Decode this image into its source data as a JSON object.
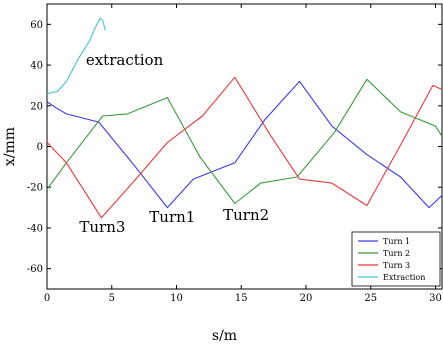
{
  "chart_data": {
    "type": "line",
    "title": "",
    "xlabel": "s/m",
    "ylabel": "x/mm",
    "xlim": [
      0,
      30.5
    ],
    "ylim": [
      -70,
      70
    ],
    "xticks": [
      0,
      5,
      10,
      15,
      20,
      25,
      30
    ],
    "yticks": [
      -60,
      -40,
      -20,
      0,
      20,
      40,
      60
    ],
    "grid": false,
    "legend_position": "bottom-right",
    "series": [
      {
        "name": "Turn 1",
        "color": "#3a3ae6",
        "points": [
          [
            0,
            22
          ],
          [
            0.7,
            19
          ],
          [
            1.5,
            16
          ],
          [
            4,
            12
          ],
          [
            6.7,
            -9
          ],
          [
            9.3,
            -30
          ],
          [
            11.3,
            -16
          ],
          [
            14.5,
            -8
          ],
          [
            16.8,
            13
          ],
          [
            19.5,
            32
          ],
          [
            22,
            10
          ],
          [
            24.7,
            -4
          ],
          [
            27.3,
            -15
          ],
          [
            29.5,
            -30
          ],
          [
            30.5,
            -24
          ]
        ]
      },
      {
        "name": "Turn 2",
        "color": "#3a9a3a",
        "points": [
          [
            0,
            -21
          ],
          [
            1.5,
            -8
          ],
          [
            4.3,
            15
          ],
          [
            6.2,
            16
          ],
          [
            9.3,
            24
          ],
          [
            11.8,
            -5
          ],
          [
            14.5,
            -28
          ],
          [
            16.5,
            -18
          ],
          [
            19.3,
            -15
          ],
          [
            22.2,
            7
          ],
          [
            24.7,
            33
          ],
          [
            27.3,
            17
          ],
          [
            30,
            10
          ],
          [
            30.5,
            5
          ]
        ]
      },
      {
        "name": "Turn 3",
        "color": "#e63a3a",
        "points": [
          [
            0,
            2
          ],
          [
            1.5,
            -8
          ],
          [
            4.2,
            -35
          ],
          [
            7,
            -15
          ],
          [
            9.3,
            2
          ],
          [
            12,
            15
          ],
          [
            14.5,
            34
          ],
          [
            17.2,
            6
          ],
          [
            19.5,
            -16
          ],
          [
            22,
            -18
          ],
          [
            24.7,
            -29
          ],
          [
            27.5,
            3
          ],
          [
            29.8,
            30
          ],
          [
            30.5,
            28
          ]
        ]
      },
      {
        "name": "Extraction",
        "color": "#3ec8d8",
        "points": [
          [
            0,
            26
          ],
          [
            0.8,
            27
          ],
          [
            1.5,
            32
          ],
          [
            2.5,
            44
          ],
          [
            3.3,
            52
          ],
          [
            3.7,
            58
          ],
          [
            4.1,
            63
          ],
          [
            4.3,
            62
          ],
          [
            4.5,
            57
          ]
        ]
      }
    ],
    "annotations": [
      {
        "text": "extraction",
        "x": 3.0,
        "y": 40
      },
      {
        "text": "Turn3",
        "x": 2.5,
        "y": -42
      },
      {
        "text": "Turn1",
        "x": 7.9,
        "y": -37
      },
      {
        "text": "Turn2",
        "x": 13.6,
        "y": -36
      }
    ]
  }
}
